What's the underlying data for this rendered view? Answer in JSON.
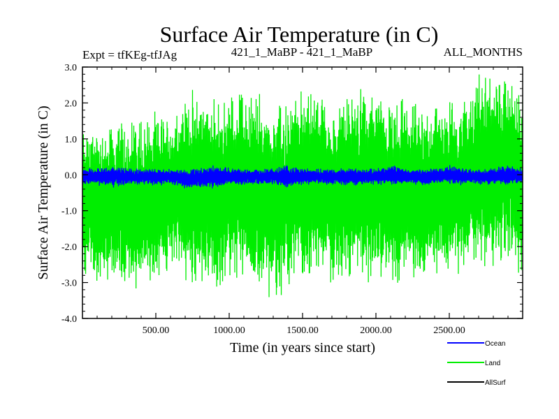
{
  "chart_data": {
    "type": "line",
    "title": "Surface Air Temperature (in C)",
    "subtitle_left": "Expt = tfKEg-tfJAg",
    "subtitle_center": "421_1_MaBP - 421_1_MaBP",
    "subtitle_right": "ALL_MONTHS",
    "xlabel": "Time (in years since start)",
    "ylabel": "Surface Air Temperature (in C)",
    "xlim": [
      0,
      3000
    ],
    "ylim": [
      -4.0,
      3.0
    ],
    "xticks": [
      500,
      1000,
      1500,
      2000,
      2500
    ],
    "xtick_labels": [
      "500.00",
      "1000.00",
      "1500.00",
      "2000.00",
      "2500.00"
    ],
    "yticks": [
      3.0,
      2.0,
      1.0,
      0.0,
      -1.0,
      -2.0,
      -3.0,
      -4.0
    ],
    "ytick_labels": [
      "3.0",
      "2.0",
      "1.0",
      "0.0",
      "-1.0",
      "-2.0",
      "-3.0",
      "-4.0"
    ],
    "grid": false,
    "legend_position": "bottom-right",
    "series": [
      {
        "name": "Land",
        "color": "#00ee00",
        "x": [
          0,
          100,
          200,
          300,
          400,
          500,
          600,
          700,
          800,
          900,
          1000,
          1100,
          1200,
          1300,
          1400,
          1500,
          1600,
          1700,
          1800,
          1900,
          2000,
          2100,
          2200,
          2300,
          2400,
          2500,
          2600,
          2700,
          2800,
          2900,
          3000
        ],
        "upper": [
          1.6,
          1.5,
          1.6,
          1.7,
          1.9,
          1.8,
          1.9,
          2.3,
          2.6,
          2.2,
          2.4,
          2.5,
          2.5,
          2.2,
          2.2,
          2.5,
          2.6,
          1.9,
          2.4,
          2.5,
          2.7,
          2.1,
          2.3,
          2.0,
          2.2,
          2.2,
          2.3,
          3.0,
          2.9,
          3.0,
          2.7
        ],
        "lower": [
          -2.9,
          -3.2,
          -3.0,
          -3.5,
          -3.2,
          -3.0,
          -2.9,
          -3.3,
          -3.2,
          -3.6,
          -3.1,
          -3.1,
          -3.3,
          -3.7,
          -3.3,
          -3.0,
          -3.1,
          -3.2,
          -3.0,
          -3.1,
          -3.0,
          -3.2,
          -3.0,
          -3.2,
          -3.0,
          -3.0,
          -2.9,
          -2.8,
          -2.7,
          -2.5,
          -3.0
        ]
      },
      {
        "name": "Ocean",
        "color": "#0000ff",
        "x": [
          0,
          100,
          200,
          300,
          400,
          500,
          600,
          700,
          800,
          900,
          1000,
          1100,
          1200,
          1300,
          1400,
          1500,
          1600,
          1700,
          1800,
          1900,
          2000,
          2100,
          2200,
          2300,
          2400,
          2500,
          2600,
          2700,
          2800,
          2900,
          3000
        ],
        "upper": [
          0.2,
          0.2,
          0.3,
          0.2,
          0.2,
          0.2,
          0.2,
          0.2,
          0.2,
          0.3,
          0.2,
          0.2,
          0.2,
          0.2,
          0.3,
          0.2,
          0.2,
          0.2,
          0.2,
          0.2,
          0.2,
          0.3,
          0.2,
          0.2,
          0.2,
          0.3,
          0.2,
          0.2,
          0.2,
          0.3,
          0.2
        ],
        "lower": [
          -0.3,
          -0.3,
          -0.4,
          -0.3,
          -0.3,
          -0.3,
          -0.3,
          -0.4,
          -0.4,
          -0.4,
          -0.3,
          -0.3,
          -0.3,
          -0.3,
          -0.4,
          -0.3,
          -0.3,
          -0.3,
          -0.3,
          -0.3,
          -0.3,
          -0.3,
          -0.3,
          -0.3,
          -0.3,
          -0.3,
          -0.3,
          -0.3,
          -0.3,
          -0.3,
          -0.3
        ]
      },
      {
        "name": "AllSurf",
        "color": "#000000",
        "x": [],
        "upper": [],
        "lower": []
      }
    ],
    "legend": [
      {
        "label": "Ocean",
        "color": "#0000ff"
      },
      {
        "label": "Land",
        "color": "#00ee00"
      },
      {
        "label": "AllSurf",
        "color": "#000000"
      }
    ]
  }
}
